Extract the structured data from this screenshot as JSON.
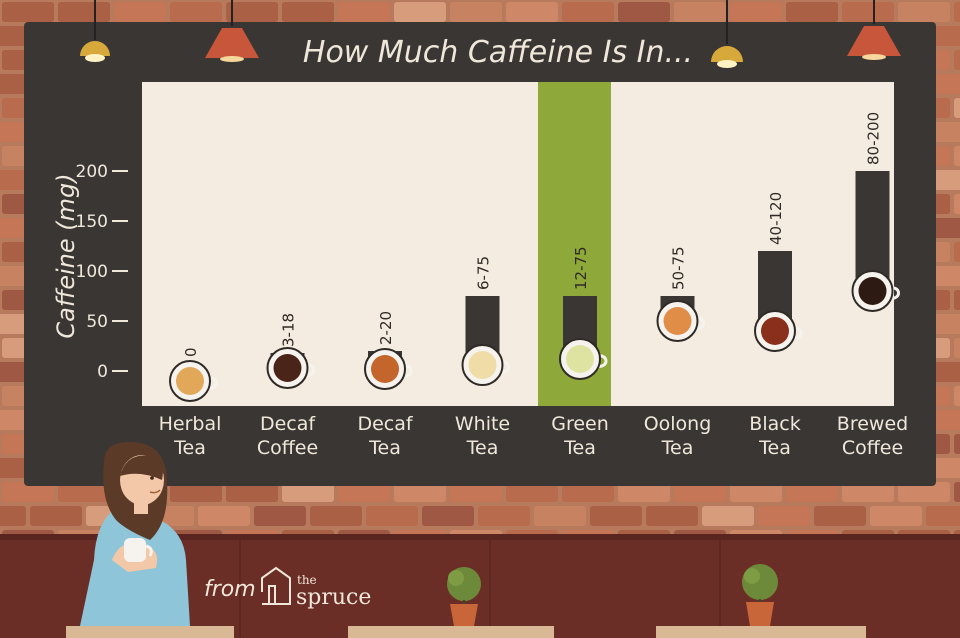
{
  "board": {
    "title": "How Much Caffeine Is In...",
    "highlight_color": "#8fa83a",
    "board_color": "#3a3633",
    "panel_color": "#f4ece0"
  },
  "chart_data": {
    "type": "bar",
    "title": "How Much Caffeine Is In...",
    "ylabel": "Caffeine (mg)",
    "xlabel": "",
    "ylim": [
      -35,
      290
    ],
    "yticks": [
      0,
      50,
      100,
      150,
      200
    ],
    "grid": false,
    "legend": "none",
    "highlighted_category": "Green Tea",
    "categories": [
      {
        "name": [
          "Herbal",
          "Tea"
        ],
        "value_label": "0",
        "min": 0,
        "max": 0,
        "liquid_color": "#e2a85a"
      },
      {
        "name": [
          "Decaf",
          "Coffee"
        ],
        "value_label": "3-18",
        "min": 3,
        "max": 18,
        "liquid_color": "#4a2418"
      },
      {
        "name": [
          "Decaf",
          "Tea"
        ],
        "value_label": "2-20",
        "min": 2,
        "max": 20,
        "liquid_color": "#c4652c"
      },
      {
        "name": [
          "White",
          "Tea"
        ],
        "value_label": "6-75",
        "min": 6,
        "max": 75,
        "liquid_color": "#efdca6"
      },
      {
        "name": [
          "Green",
          "Tea"
        ],
        "value_label": "12-75",
        "min": 12,
        "max": 75,
        "liquid_color": "#dfe3a2"
      },
      {
        "name": [
          "Oolong",
          "Tea"
        ],
        "value_label": "50-75",
        "min": 50,
        "max": 75,
        "liquid_color": "#e08d48"
      },
      {
        "name": [
          "Black",
          "Tea"
        ],
        "value_label": "40-120",
        "min": 40,
        "max": 120,
        "liquid_color": "#8a2f1c"
      },
      {
        "name": [
          "Brewed",
          "Coffee"
        ],
        "value_label": "80-200",
        "min": 80,
        "max": 200,
        "liquid_color": "#2d1a12"
      }
    ]
  },
  "footer": {
    "from_text": "from",
    "brand_small": "the",
    "brand": "spruce"
  }
}
